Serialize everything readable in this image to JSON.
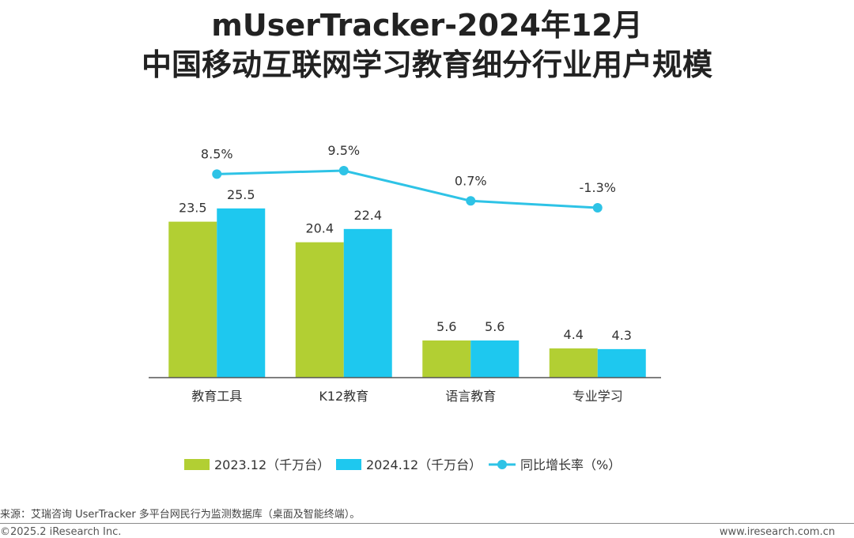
{
  "title_line1": "mUserTracker-2024年12月",
  "title_line2": "中国移动互联网学习教育细分行业用户规模",
  "colors": {
    "series_2023": "#b2cf33",
    "series_2024": "#1ec8ef",
    "growth_line": "#2ec3e6",
    "axis": "#555555"
  },
  "chart_data": {
    "type": "bar",
    "categories": [
      "教育工具",
      "K12教育",
      "语言教育",
      "专业学习"
    ],
    "series": [
      {
        "name": "2023.12（千万台）",
        "values": [
          23.5,
          20.4,
          5.6,
          4.4
        ]
      },
      {
        "name": "2024.12（千万台）",
        "values": [
          25.5,
          22.4,
          5.6,
          4.3
        ]
      }
    ],
    "line_series": {
      "name": "同比增长率（%）",
      "values": [
        8.5,
        9.5,
        0.7,
        -1.3
      ],
      "labels": [
        "8.5%",
        "9.5%",
        "0.7%",
        "-1.3%"
      ]
    },
    "bar_labels": [
      [
        "23.5",
        "20.4",
        "5.6",
        "4.4"
      ],
      [
        "25.5",
        "22.4",
        "5.6",
        "4.3"
      ]
    ],
    "ylim": [
      0,
      30
    ],
    "line_ylim": [
      -12,
      12
    ],
    "legend_position": "bottom",
    "grid": false
  },
  "footer": {
    "source": "来源：艾瑞咨询 UserTracker 多平台网民行为监测数据库（桌面及智能终端）。",
    "copyright": "©2025.2 iResearch Inc.",
    "website": "www.iresearch.com.cn"
  }
}
